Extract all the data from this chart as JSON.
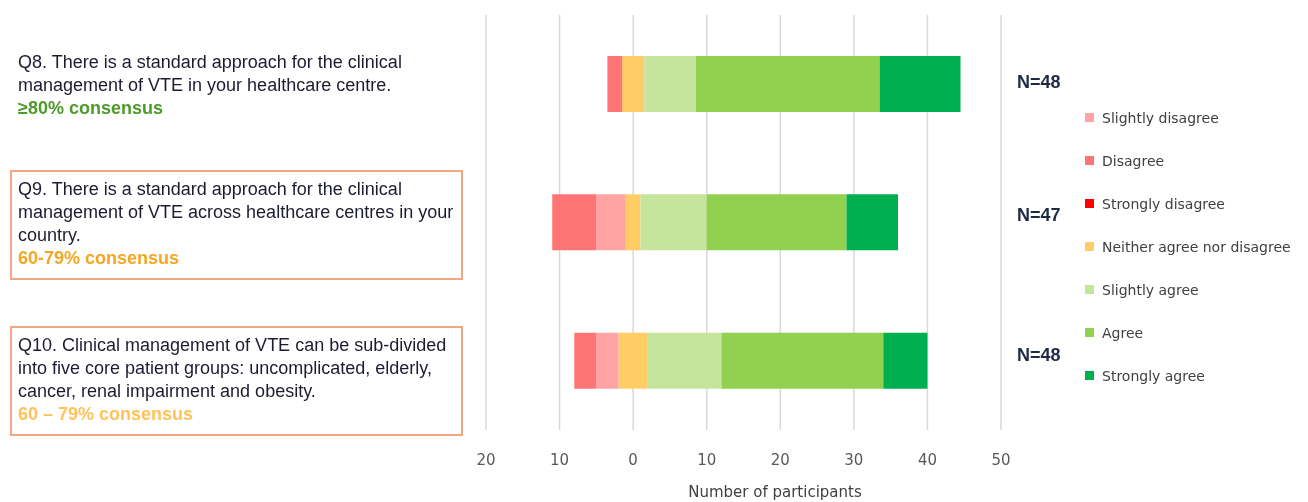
{
  "chart_data": {
    "type": "bar",
    "orientation": "horizontal",
    "stacked": true,
    "categories": [
      "Q8. There is a standard approach for the clinical management of VTE in your healthcare centre.",
      "Q9. There is a standard approach for the clinical management of VTE across healthcare centres in your country.",
      "Q10. Clinical management of VTE can be sub-divided into five core patient groups: uncomplicated, elderly, cancer, renal impairment and obesity."
    ],
    "series": [
      {
        "color": "#ffcc66",
        "values": [
          -1.5,
          -1,
          -2
        ]
      },
      {
        "name": "Slightly disagree",
        "color": "#ffa3a3",
        "values": [
          0,
          -4,
          -3
        ]
      },
      {
        "name": "Disagree",
        "color": "#ff7575",
        "values": [
          -2,
          -6,
          -3
        ]
      },
      {
        "name": "Strongly disagree",
        "color": "#ff0000",
        "values": [
          0,
          0,
          0
        ]
      },
      {
        "name": "Neither agree nor disagree",
        "color": "#ffcc66",
        "values": [
          1.5,
          1,
          2
        ]
      },
      {
        "name": "Slightly agree",
        "color": "#c5e49c",
        "values": [
          7,
          9,
          10
        ]
      },
      {
        "name": "Agree",
        "color": "#92d050",
        "values": [
          25,
          19,
          22
        ]
      },
      {
        "name": "Strongly agree",
        "color": "#00b050",
        "values": [
          11,
          7,
          6
        ]
      }
    ],
    "annotations": [
      "≥80% consensus",
      "60-79% consensus",
      "60 – 79% consensus",
      "N=48",
      "N=47",
      "N=48"
    ],
    "xlabel": "Number of participants",
    "xlim": [
      -20,
      50
    ],
    "xticks": [
      {
        "value": -20,
        "label": "20"
      },
      {
        "value": -10,
        "label": "10"
      },
      0,
      10,
      20,
      30,
      40,
      50
    ],
    "grid": "x",
    "legend": "right"
  }
}
